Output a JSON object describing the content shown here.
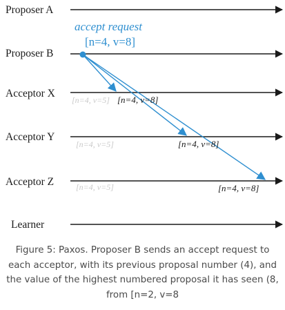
{
  "diagram": {
    "lanes": [
      {
        "key": "proposer_a",
        "label": "Proposer A"
      },
      {
        "key": "proposer_b",
        "label": "Proposer B"
      },
      {
        "key": "acceptor_x",
        "label": "Acceptor X"
      },
      {
        "key": "acceptor_y",
        "label": "Acceptor Y"
      },
      {
        "key": "acceptor_z",
        "label": "Acceptor Z"
      },
      {
        "key": "learner",
        "label": "Learner"
      }
    ],
    "message": {
      "title": "accept request",
      "value": "[n=4, v=8]"
    },
    "acceptor_states": [
      {
        "lane": "acceptor_x",
        "previous": "[n=4, v=5]",
        "new": "[n=4, v=8]"
      },
      {
        "lane": "acceptor_y",
        "previous": "[n=4, v=5]",
        "new": "[n=4, v=8]"
      },
      {
        "lane": "acceptor_z",
        "previous": "[n=4, v=5]",
        "new": "[n=4, v=8]"
      }
    ],
    "colors": {
      "timeline": "#1a1a1a",
      "message": "#2f8fd0",
      "faded_state": "#c9c9c9"
    }
  },
  "caption": "Figure 5: Paxos. Proposer B sends an accept request to each acceptor, with its previous proposal number (4), and the value of the highest numbered proposal it has seen (8, from [n=2, v=8"
}
